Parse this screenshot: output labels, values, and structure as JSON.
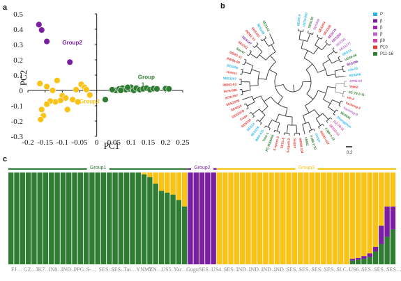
{
  "panels": {
    "a": "a",
    "b": "b",
    "c": "c"
  },
  "colors": {
    "green": "#2e7d32",
    "purple": "#7b1fa2",
    "yellow": "#f9c214"
  },
  "chart_data": [
    {
      "type": "scatter",
      "xlabel": "PC1",
      "ylabel": "PC2",
      "xlim": [
        -0.2,
        0.25
      ],
      "ylim": [
        -0.3,
        0.5
      ],
      "xticks": [
        "-0.2",
        "-0.15",
        "-0.1",
        "-0.05",
        "0",
        "0.05",
        "0.1",
        "0.15",
        "0.2",
        "0.25"
      ],
      "yticks": [
        "-0.3",
        "-0.2",
        "-0.1",
        "0",
        "0.1",
        "0.2",
        "0.3",
        "0.4",
        "0.5"
      ],
      "group_labels": [
        {
          "text": "Group2",
          "x": -0.1,
          "y": 0.3,
          "color": "purple"
        },
        {
          "text": "Group3",
          "x": -0.05,
          "y": -0.085,
          "color": "yellow"
        },
        {
          "text": "Group",
          "x": 0.12,
          "y": 0.075,
          "color": "green"
        },
        {
          "text": "1",
          "x": 0.13,
          "y": 0.025,
          "color": "green"
        }
      ],
      "series": [
        {
          "group": "purple",
          "points": [
            [
              -0.168,
              0.43
            ],
            [
              -0.16,
              0.395
            ],
            [
              -0.145,
              0.32
            ],
            [
              -0.078,
              0.185
            ]
          ]
        },
        {
          "group": "yellow",
          "points": [
            [
              -0.115,
              0.065
            ],
            [
              -0.04,
              0.028
            ],
            [
              -0.06,
              0.005
            ],
            [
              -0.165,
              0.045
            ],
            [
              -0.128,
              0.0
            ],
            [
              -0.045,
              0.04
            ],
            [
              -0.035,
              0.02
            ],
            [
              -0.1,
              -0.035
            ],
            [
              -0.09,
              -0.05
            ],
            [
              -0.105,
              -0.065
            ],
            [
              -0.07,
              -0.06
            ],
            [
              -0.12,
              -0.075
            ],
            [
              -0.135,
              -0.07
            ],
            [
              -0.145,
              -0.09
            ],
            [
              -0.16,
              -0.125
            ],
            [
              -0.155,
              -0.165
            ],
            [
              -0.163,
              -0.19
            ],
            [
              -0.085,
              -0.125
            ],
            [
              -0.055,
              -0.075
            ],
            [
              -0.02,
              -0.03
            ],
            [
              -0.145,
              0.025
            ],
            [
              -0.03,
              0.005
            ]
          ]
        },
        {
          "group": "green",
          "points": [
            [
              0.025,
              -0.06
            ],
            [
              0.055,
              0.0
            ],
            [
              0.065,
              0.01
            ],
            [
              0.075,
              0.015
            ],
            [
              0.085,
              0.005
            ],
            [
              0.095,
              0.01
            ],
            [
              0.1,
              0.02
            ],
            [
              0.108,
              0.0
            ],
            [
              0.115,
              0.015
            ],
            [
              0.125,
              0.005
            ],
            [
              0.135,
              0.01
            ],
            [
              0.145,
              0.015
            ],
            [
              0.155,
              0.005
            ],
            [
              0.165,
              0.012
            ],
            [
              0.175,
              0.01
            ],
            [
              0.2,
              0.012
            ],
            [
              0.21,
              0.01
            ],
            [
              0.045,
              0.005
            ],
            [
              0.07,
              0.0
            ],
            [
              0.09,
              0.02
            ]
          ]
        }
      ]
    },
    {
      "type": "tree",
      "scale_label": "0.2",
      "legend": [
        {
          "label": "P",
          "color": "#29b6e8"
        },
        {
          "label": "β",
          "color": "#7b1fa2"
        },
        {
          "label": "β",
          "color": "#9c27b0"
        },
        {
          "label": "β",
          "color": "#ba68c8"
        },
        {
          "label": "β9",
          "color": "#e040a0"
        },
        {
          "label": "P10",
          "color": "#e53935"
        },
        {
          "label": "P11-16",
          "color": "#2e7d32"
        }
      ],
      "leaves": [
        {
          "label": "SES014",
          "color": "#29b6e8"
        },
        {
          "label": "US78-050",
          "color": "#29b6e8"
        },
        {
          "label": "SES100",
          "color": "#2e7d32"
        },
        {
          "label": "SES339",
          "color": "#ba68c8"
        },
        {
          "label": "SES294",
          "color": "#e53935"
        },
        {
          "label": "SES208",
          "color": "#e53935"
        },
        {
          "label": "SES178",
          "color": "#9c27b0"
        },
        {
          "label": "SES350",
          "color": "#9c27b0"
        },
        {
          "label": "SES321",
          "color": "#ba68c8"
        },
        {
          "label": "SES1277",
          "color": "#ba68c8"
        },
        {
          "label": "SES1A",
          "color": "#29b6e8"
        },
        {
          "label": "US48-48",
          "color": "#2e7d32"
        },
        {
          "label": "SES186",
          "color": "#7b1fa2"
        },
        {
          "label": "s15-05",
          "color": "#29b6e8"
        },
        {
          "label": "SES208",
          "color": "#29b6e8"
        },
        {
          "label": "AP85-68",
          "color": "#ba68c8"
        },
        {
          "label": "YNMZ",
          "color": "#e53935"
        },
        {
          "label": "SC-79-2-11",
          "color": "#2e7d32"
        },
        {
          "label": "Hh-2",
          "color": "#e53935"
        },
        {
          "label": "Yacheng-2",
          "color": "#e53935"
        },
        {
          "label": "Yacheng-β",
          "color": "#ba68c8"
        },
        {
          "label": "SES041",
          "color": "#2e7d32"
        },
        {
          "label": "Shangjinan",
          "color": "#29b6e8"
        },
        {
          "label": "GZ-78-11",
          "color": "#e040a0"
        },
        {
          "label": "SES11-11",
          "color": "#e040a0"
        },
        {
          "label": "FJ89-1-13",
          "color": "#2e7d32"
        },
        {
          "label": "IND81-147",
          "color": "#e53935"
        },
        {
          "label": "Dorgo",
          "color": "#29b6e8"
        },
        {
          "label": "FJ88-1-10",
          "color": "#2e7d32"
        },
        {
          "label": "YNMZ",
          "color": "#2e7d32"
        },
        {
          "label": "IND89-104",
          "color": "#e53935"
        },
        {
          "label": "Sugon",
          "color": "#e53935"
        },
        {
          "label": "S-sguib-2",
          "color": "#e53935"
        },
        {
          "label": "SES1-8",
          "color": "#e53935"
        },
        {
          "label": "S-spont-3",
          "color": "#e53935"
        },
        {
          "label": "PC-MAWAN",
          "color": "#2e7d32"
        },
        {
          "label": "Tosk-1",
          "color": "#2e7d32"
        },
        {
          "label": "IN84-431",
          "color": "#29b6e8"
        },
        {
          "label": "SES319",
          "color": "#29b6e8"
        },
        {
          "label": "SES1X",
          "color": "#29b6e8"
        },
        {
          "label": "SES334",
          "color": "#e53935"
        },
        {
          "label": "Gugu",
          "color": "#e53935"
        },
        {
          "label": "SES297B",
          "color": "#e53935"
        },
        {
          "label": "SES019",
          "color": "#e53935"
        },
        {
          "label": "SES297B",
          "color": "#e53935"
        },
        {
          "label": "IK76-067",
          "color": "#e53935"
        },
        {
          "label": "IN76-086",
          "color": "#e53935"
        },
        {
          "label": "IND81-03",
          "color": "#e53935"
        },
        {
          "label": "SES1207",
          "color": "#29b6e8"
        },
        {
          "label": "Holes1",
          "color": "#e53935"
        },
        {
          "label": "SES005",
          "color": "#29b6e8"
        },
        {
          "label": "IND81-09",
          "color": "#e53935"
        },
        {
          "label": "IND81-11",
          "color": "#e53935"
        },
        {
          "label": "Sao4c",
          "color": "#2e7d32"
        },
        {
          "label": "SES111",
          "color": "#e53935"
        },
        {
          "label": "SES147",
          "color": "#7b1fa2"
        },
        {
          "label": "IND81-13",
          "color": "#e53935"
        },
        {
          "label": "SES103",
          "color": "#e53935"
        },
        {
          "label": "SES148",
          "color": "#29b6e8"
        },
        {
          "label": "SES143",
          "color": "#2e7d32"
        }
      ]
    },
    {
      "type": "bar",
      "stacked": true,
      "bands": [
        {
          "label": "Group1",
          "color": "#2e7d32",
          "from": 0,
          "to": 31
        },
        {
          "label": "Group2",
          "color": "#7b1fa2",
          "from": 31,
          "to": 36
        },
        {
          "label": "Group3",
          "color": "#f9c214",
          "from": 36,
          "to": 67
        }
      ],
      "xlabels": [
        "FJ…",
        "GZ…",
        "IK7…",
        "IN8…",
        "IND…",
        "PPG…",
        "S-…",
        "SES…",
        "SES…",
        "Tai…",
        "YNMZ",
        "YN…",
        "US5…",
        "Yac…",
        "Gugu",
        "SES…",
        "US4…",
        "SES…",
        "IND…",
        "IND…",
        "IND…",
        "IND…",
        "SES…",
        "SES…",
        "SES…",
        "SES…",
        "SLC…",
        "US6…",
        "SES…",
        "SES…",
        "SES…"
      ],
      "series": [
        {
          "name": "green",
          "values": [
            1,
            1,
            1,
            1,
            1,
            1,
            1,
            1,
            1,
            1,
            1,
            1,
            1,
            1,
            1,
            1,
            1,
            1,
            1,
            1,
            1,
            1,
            1,
            0.98,
            0.95,
            0.88,
            0.8,
            0.78,
            0.76,
            0.7,
            0.63,
            0,
            0,
            0,
            0,
            0,
            0,
            0,
            0,
            0,
            0,
            0,
            0,
            0,
            0,
            0,
            0,
            0,
            0,
            0,
            0,
            0,
            0,
            0,
            0,
            0,
            0,
            0,
            0,
            0.04,
            0.05,
            0.06,
            0.08,
            0.14,
            0.22,
            0.3,
            0.38
          ]
        },
        {
          "name": "purple",
          "values": [
            0,
            0,
            0,
            0,
            0,
            0,
            0,
            0,
            0,
            0,
            0,
            0,
            0,
            0,
            0,
            0,
            0,
            0,
            0,
            0,
            0,
            0,
            0,
            0,
            0,
            0,
            0,
            0,
            0,
            0,
            0,
            1,
            1,
            1,
            1,
            1,
            0,
            0,
            0,
            0,
            0,
            0,
            0,
            0,
            0,
            0,
            0,
            0,
            0,
            0,
            0,
            0,
            0,
            0,
            0,
            0,
            0,
            0,
            0,
            0.02,
            0.02,
            0.03,
            0.04,
            0.05,
            0.2,
            0.33,
            0.25
          ]
        },
        {
          "name": "yellow",
          "values": [
            0,
            0,
            0,
            0,
            0,
            0,
            0,
            0,
            0,
            0,
            0,
            0,
            0,
            0,
            0,
            0,
            0,
            0,
            0,
            0,
            0,
            0,
            0,
            0.02,
            0.05,
            0.12,
            0.2,
            0.22,
            0.24,
            0.3,
            0.37,
            0,
            0,
            0,
            0,
            0,
            1,
            1,
            1,
            1,
            1,
            1,
            1,
            1,
            1,
            1,
            1,
            1,
            1,
            1,
            1,
            1,
            1,
            1,
            1,
            1,
            1,
            1,
            1,
            0.94,
            0.93,
            0.91,
            0.88,
            0.81,
            0.58,
            0.37,
            0.37
          ]
        }
      ]
    }
  ]
}
